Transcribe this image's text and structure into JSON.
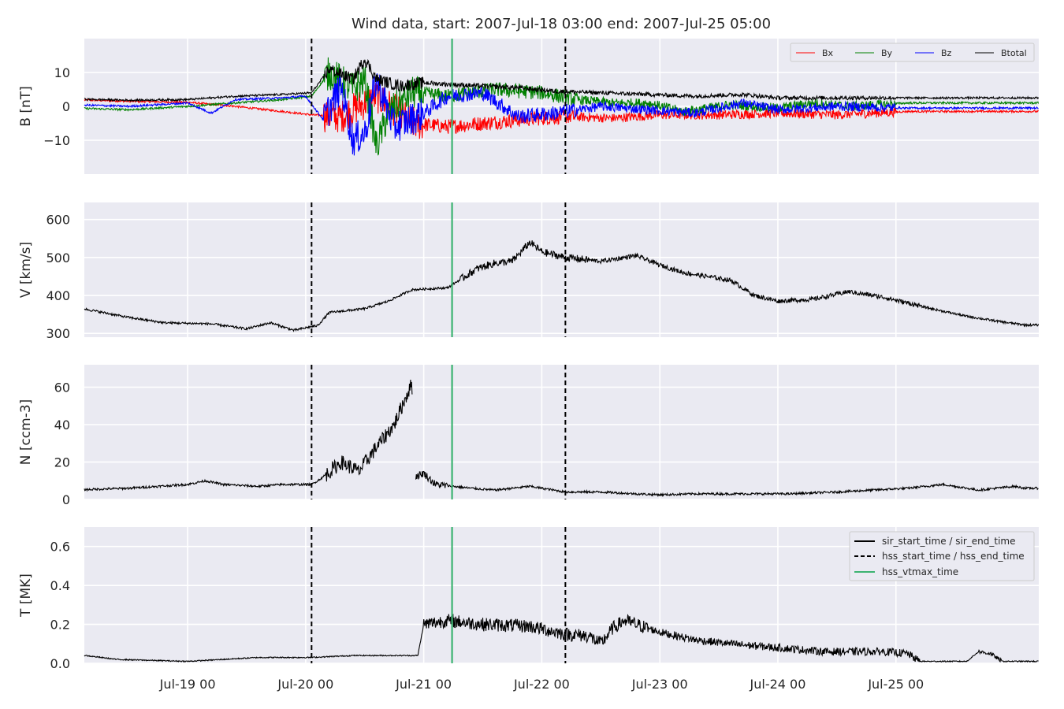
{
  "figure": {
    "title": "Wind data, start: 2007-Jul-18 03:00  end: 2007-Jul-25 05:00"
  },
  "chart_data": [
    {
      "type": "line",
      "panel": "B",
      "ylabel": "B [nT]",
      "ylim": [
        -20,
        20
      ],
      "yticks": [
        -10,
        0,
        10
      ],
      "ytick_labels": [
        "−10",
        "0",
        "10"
      ],
      "grid": true,
      "legend_position": "top-right",
      "series": [
        {
          "name": "Bx",
          "color": "#ff0000",
          "points": [
            [
              0,
              2
            ],
            [
              0.5,
              1.5
            ],
            [
              1,
              1.2
            ],
            [
              1.4,
              0
            ],
            [
              1.8,
              -1.5
            ],
            [
              2.05,
              -2.5
            ],
            [
              2.3,
              -3
            ],
            [
              2.45,
              0
            ],
            [
              2.6,
              3
            ],
            [
              2.9,
              -5
            ],
            [
              3.2,
              -6
            ],
            [
              3.5,
              -5
            ],
            [
              3.8,
              -4
            ],
            [
              4.2,
              -3
            ],
            [
              4.6,
              -3.5
            ],
            [
              5.0,
              -2.5
            ],
            [
              5.5,
              -2.5
            ],
            [
              6.0,
              -2
            ],
            [
              6.5,
              -2.5
            ],
            [
              7.1,
              -1.5
            ]
          ]
        },
        {
          "name": "By",
          "color": "#008000",
          "points": [
            [
              0,
              -0.5
            ],
            [
              0.5,
              -1
            ],
            [
              1,
              0
            ],
            [
              1.4,
              1
            ],
            [
              1.8,
              2
            ],
            [
              2.05,
              3
            ],
            [
              2.2,
              10
            ],
            [
              2.4,
              5
            ],
            [
              2.5,
              8
            ],
            [
              2.6,
              -12
            ],
            [
              2.7,
              -2
            ],
            [
              2.9,
              4
            ],
            [
              3.2,
              3
            ],
            [
              3.6,
              5
            ],
            [
              4.0,
              4
            ],
            [
              4.3,
              2
            ],
            [
              4.6,
              1
            ],
            [
              4.9,
              1
            ],
            [
              5.2,
              -1.5
            ],
            [
              5.6,
              0.5
            ],
            [
              6.0,
              -0.5
            ],
            [
              6.3,
              1
            ],
            [
              6.6,
              0
            ],
            [
              7.1,
              1
            ]
          ]
        },
        {
          "name": "Bz",
          "color": "#0000ff",
          "points": [
            [
              0,
              0.5
            ],
            [
              0.5,
              0
            ],
            [
              1,
              1
            ],
            [
              1.2,
              -2
            ],
            [
              1.4,
              2
            ],
            [
              1.8,
              2.5
            ],
            [
              2.0,
              3
            ],
            [
              2.15,
              -4
            ],
            [
              2.3,
              6
            ],
            [
              2.4,
              -10
            ],
            [
              2.5,
              -8
            ],
            [
              2.6,
              8
            ],
            [
              2.75,
              -6
            ],
            [
              3.0,
              -2
            ],
            [
              3.2,
              3
            ],
            [
              3.5,
              4
            ],
            [
              3.8,
              -3
            ],
            [
              4.1,
              -2
            ],
            [
              4.5,
              0
            ],
            [
              4.9,
              -1
            ],
            [
              5.3,
              -2
            ],
            [
              5.7,
              1
            ],
            [
              6.0,
              -1
            ],
            [
              6.5,
              0
            ],
            [
              7.1,
              -0.5
            ]
          ]
        },
        {
          "name": "Btotal",
          "color": "#000000",
          "points": [
            [
              0,
              2.2
            ],
            [
              0.5,
              1.8
            ],
            [
              1,
              2
            ],
            [
              1.4,
              3
            ],
            [
              1.8,
              3.5
            ],
            [
              2.05,
              4
            ],
            [
              2.2,
              11
            ],
            [
              2.4,
              8
            ],
            [
              2.5,
              14
            ],
            [
              2.6,
              8
            ],
            [
              2.8,
              6
            ],
            [
              3.0,
              7
            ],
            [
              3.2,
              6.5
            ],
            [
              3.5,
              6
            ],
            [
              3.8,
              5.5
            ],
            [
              4.1,
              4.5
            ],
            [
              4.5,
              4
            ],
            [
              4.9,
              3.5
            ],
            [
              5.3,
              3
            ],
            [
              5.7,
              3.5
            ],
            [
              6.0,
              2.5
            ],
            [
              6.5,
              2.5
            ],
            [
              7.1,
              2.5
            ]
          ]
        }
      ]
    },
    {
      "type": "line",
      "panel": "V",
      "ylabel": "V [km/s]",
      "ylim": [
        290,
        645
      ],
      "yticks": [
        300,
        400,
        500,
        600
      ],
      "grid": true,
      "series": [
        {
          "name": "",
          "color": "#000000",
          "points": [
            [
              0,
              372
            ],
            [
              0.5,
              342
            ],
            [
              0.8,
              328
            ],
            [
              1.2,
              325
            ],
            [
              1.5,
              312
            ],
            [
              1.7,
              328
            ],
            [
              1.9,
              308
            ],
            [
              2.05,
              318
            ],
            [
              2.1,
              320
            ],
            [
              2.2,
              355
            ],
            [
              2.5,
              365
            ],
            [
              2.7,
              385
            ],
            [
              2.9,
              415
            ],
            [
              3.2,
              420
            ],
            [
              3.45,
              470
            ],
            [
              3.6,
              485
            ],
            [
              3.75,
              490
            ],
            [
              3.9,
              540
            ],
            [
              4.0,
              515
            ],
            [
              4.2,
              500
            ],
            [
              4.5,
              490
            ],
            [
              4.8,
              505
            ],
            [
              5.0,
              480
            ],
            [
              5.2,
              460
            ],
            [
              5.4,
              450
            ],
            [
              5.6,
              440
            ],
            [
              5.8,
              400
            ],
            [
              6.0,
              385
            ],
            [
              6.3,
              390
            ],
            [
              6.6,
              410
            ],
            [
              6.9,
              395
            ],
            [
              7.1,
              380
            ],
            [
              7.3,
              365
            ],
            [
              7.6,
              345
            ],
            [
              7.9,
              330
            ],
            [
              8.1,
              322
            ]
          ]
        }
      ]
    },
    {
      "type": "line",
      "panel": "N",
      "ylabel": "N [ccm-3]",
      "ylim": [
        0,
        72
      ],
      "yticks": [
        0,
        20,
        40,
        60
      ],
      "grid": true,
      "series": [
        {
          "name": "",
          "color": "#000000",
          "points": [
            [
              0,
              5
            ],
            [
              0.5,
              6
            ],
            [
              1,
              8
            ],
            [
              1.15,
              10
            ],
            [
              1.3,
              8
            ],
            [
              1.6,
              7
            ],
            [
              1.8,
              8
            ],
            [
              2.05,
              8
            ],
            [
              2.15,
              12
            ],
            [
              2.3,
              20
            ],
            [
              2.45,
              15
            ],
            [
              2.6,
              28
            ],
            [
              2.75,
              40
            ],
            [
              2.85,
              55
            ],
            [
              2.9,
              62
            ],
            [
              2.92,
              12
            ],
            [
              3.0,
              14
            ],
            [
              3.1,
              8
            ],
            [
              3.4,
              6
            ],
            [
              3.6,
              5
            ],
            [
              3.9,
              7
            ],
            [
              4.2,
              4
            ],
            [
              4.5,
              4
            ],
            [
              4.8,
              3
            ],
            [
              5.0,
              2.5
            ],
            [
              5.3,
              3
            ],
            [
              5.7,
              3
            ],
            [
              6.1,
              3
            ],
            [
              6.5,
              4
            ],
            [
              6.8,
              5
            ],
            [
              7.1,
              6
            ],
            [
              7.4,
              8
            ],
            [
              7.7,
              5
            ],
            [
              8.0,
              7
            ],
            [
              8.1,
              6
            ]
          ]
        }
      ]
    },
    {
      "type": "line",
      "panel": "T",
      "ylabel": "T [MK]",
      "ylim": [
        0,
        0.7
      ],
      "yticks": [
        0.0,
        0.2,
        0.4,
        0.6
      ],
      "ytick_labels": [
        "0.0",
        "0.2",
        "0.4",
        "0.6"
      ],
      "grid": true,
      "legend_position": "top-right",
      "series": [
        {
          "name": "",
          "color": "#000000",
          "points": [
            [
              0,
              0.05
            ],
            [
              0.4,
              0.02
            ],
            [
              1,
              0.01
            ],
            [
              1.6,
              0.03
            ],
            [
              2.05,
              0.03
            ],
            [
              2.4,
              0.04
            ],
            [
              2.95,
              0.04
            ],
            [
              3.0,
              0.2
            ],
            [
              3.2,
              0.22
            ],
            [
              3.5,
              0.2
            ],
            [
              3.9,
              0.19
            ],
            [
              4.2,
              0.15
            ],
            [
              4.4,
              0.14
            ],
            [
              4.5,
              0.1
            ],
            [
              4.6,
              0.18
            ],
            [
              4.7,
              0.22
            ],
            [
              4.8,
              0.2
            ],
            [
              5.0,
              0.16
            ],
            [
              5.3,
              0.12
            ],
            [
              5.6,
              0.1
            ],
            [
              6.0,
              0.08
            ],
            [
              6.4,
              0.06
            ],
            [
              6.9,
              0.06
            ],
            [
              7.1,
              0.05
            ],
            [
              7.2,
              0.01
            ],
            [
              7.6,
              0.01
            ],
            [
              7.7,
              0.06
            ],
            [
              7.8,
              0.05
            ],
            [
              7.9,
              0.01
            ],
            [
              8.1,
              0.01
            ]
          ]
        }
      ]
    }
  ],
  "x_axis": {
    "tick_labels": [
      "Jul-19 00",
      "Jul-20 00",
      "Jul-21 00",
      "Jul-22 00",
      "Jul-23 00",
      "Jul-24 00",
      "Jul-25 00"
    ],
    "tick_values_days_from_Jul18_00": [
      1,
      2,
      3,
      4,
      5,
      6,
      7
    ]
  },
  "reference_lines": {
    "hss_start_time": 2.05,
    "hss_end_time": 4.2,
    "hss_vtmax_time": 3.24
  },
  "legend_B": [
    "Bx",
    "By",
    "Bz",
    "Btotal"
  ],
  "legend_T": {
    "sir": "sir_start_time / sir_end_time",
    "hss": "hss_start_time / hss_end_time",
    "vtmax": "hss_vtmax_time"
  },
  "colors": {
    "panel_bg": "#eaeaf2",
    "grid": "#ffffff",
    "vtmax_line": "#3cb371"
  }
}
